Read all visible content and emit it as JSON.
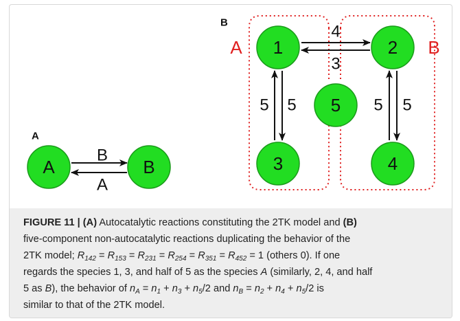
{
  "panels": [
    {
      "label": "A",
      "nodes": [
        {
          "label": "A"
        },
        {
          "label": "B"
        }
      ],
      "edges": [
        {
          "label": "B"
        },
        {
          "label": "A"
        }
      ]
    },
    {
      "label": "B",
      "groups": [
        {
          "label": "A"
        },
        {
          "label": "B"
        }
      ],
      "nodes": [
        {
          "label": "1"
        },
        {
          "label": "2"
        },
        {
          "label": "5"
        },
        {
          "label": "3"
        },
        {
          "label": "4"
        }
      ],
      "edges": [
        {
          "label": "4"
        },
        {
          "label": "3"
        },
        {
          "label": "5"
        },
        {
          "label": "5"
        },
        {
          "label": "5"
        },
        {
          "label": "5"
        }
      ]
    }
  ],
  "caption": {
    "lines": [
      [
        {
          "b": "FIGURE 11 | (A)"
        },
        {
          "t": " Autocatalytic reactions constituting the 2TK model and "
        },
        {
          "b": "(B)"
        }
      ],
      [
        {
          "t": "five-component non-autocatalytic reactions duplicating the behavior of the"
        }
      ],
      [
        {
          "t": "2TK model; "
        },
        {
          "i": "R"
        },
        {
          "s": "142"
        },
        {
          "t": " = "
        },
        {
          "i": "R"
        },
        {
          "s": "153"
        },
        {
          "t": " = "
        },
        {
          "i": "R"
        },
        {
          "s": "231"
        },
        {
          "t": " = "
        },
        {
          "i": "R"
        },
        {
          "s": "254"
        },
        {
          "t": " = "
        },
        {
          "i": "R"
        },
        {
          "s": "351"
        },
        {
          "t": " = "
        },
        {
          "i": "R"
        },
        {
          "s": "452"
        },
        {
          "t": " = 1 (others 0). If one"
        }
      ],
      [
        {
          "t": "regards the species 1, 3, and half of 5 as the species "
        },
        {
          "i": "A"
        },
        {
          "t": " (similarly, 2, 4, and half"
        }
      ],
      [
        {
          "t": "5 as "
        },
        {
          "i": "B"
        },
        {
          "t": "), the behavior of "
        },
        {
          "i": "n"
        },
        {
          "s": "A"
        },
        {
          "t": " = "
        },
        {
          "i": "n"
        },
        {
          "s": "1"
        },
        {
          "t": " + "
        },
        {
          "i": "n"
        },
        {
          "s": "3"
        },
        {
          "t": " + "
        },
        {
          "i": "n"
        },
        {
          "s": "5"
        },
        {
          "t": "/2 and "
        },
        {
          "i": "n"
        },
        {
          "s": "B"
        },
        {
          "t": " = "
        },
        {
          "i": "n"
        },
        {
          "s": "2"
        },
        {
          "t": " + "
        },
        {
          "i": "n"
        },
        {
          "s": "4"
        },
        {
          "t": " + "
        },
        {
          "i": "n"
        },
        {
          "s": "5"
        },
        {
          "t": "/2 is"
        }
      ],
      [
        {
          "t": "similar to that of the 2TK model."
        }
      ]
    ]
  }
}
